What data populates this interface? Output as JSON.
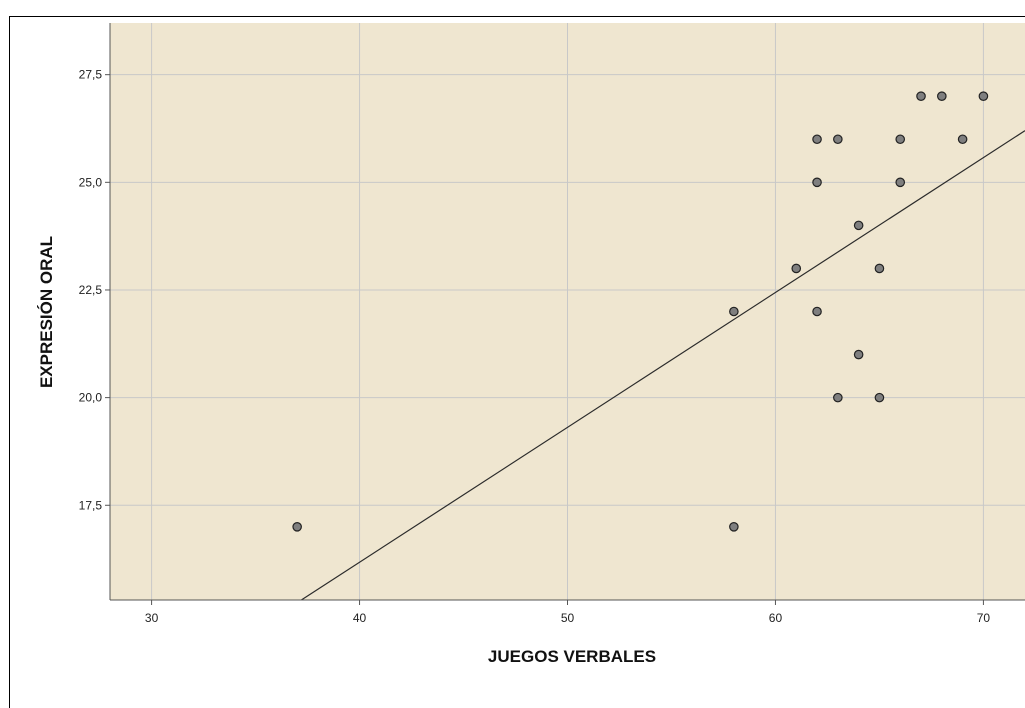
{
  "chart_data": {
    "type": "scatter",
    "xlabel": "JUEGOS VERBALES",
    "ylabel": "EXPRESIÓN ORAL",
    "xlim": [
      28,
      72
    ],
    "ylim": [
      15.3,
      28.7
    ],
    "x_ticks": [
      30,
      40,
      50,
      60,
      70
    ],
    "x_tick_labels": [
      "30",
      "40",
      "50",
      "60",
      "70"
    ],
    "y_ticks": [
      17.5,
      20.0,
      22.5,
      25.0,
      27.5
    ],
    "y_tick_labels": [
      "17,5",
      "20,0",
      "22,5",
      "25,0",
      "27,5"
    ],
    "grid": true,
    "plot_background": "#efe6d0",
    "gridline_color": "#c8c8c8",
    "point_fill": "#7f7f7f",
    "point_stroke": "#222222",
    "fit_line": {
      "x": [
        37.2,
        72
      ],
      "y": [
        15.3,
        26.2
      ],
      "color": "#2b2b2b"
    },
    "points": [
      {
        "x": 37,
        "y": 17
      },
      {
        "x": 58,
        "y": 17
      },
      {
        "x": 58,
        "y": 22
      },
      {
        "x": 61,
        "y": 23
      },
      {
        "x": 62,
        "y": 26
      },
      {
        "x": 62,
        "y": 25
      },
      {
        "x": 62,
        "y": 22
      },
      {
        "x": 63,
        "y": 26
      },
      {
        "x": 63,
        "y": 20
      },
      {
        "x": 64,
        "y": 24
      },
      {
        "x": 64,
        "y": 21
      },
      {
        "x": 65,
        "y": 23
      },
      {
        "x": 65,
        "y": 20
      },
      {
        "x": 66,
        "y": 26
      },
      {
        "x": 66,
        "y": 25
      },
      {
        "x": 67,
        "y": 27
      },
      {
        "x": 68,
        "y": 27
      },
      {
        "x": 69,
        "y": 26
      },
      {
        "x": 70,
        "y": 27
      }
    ]
  }
}
